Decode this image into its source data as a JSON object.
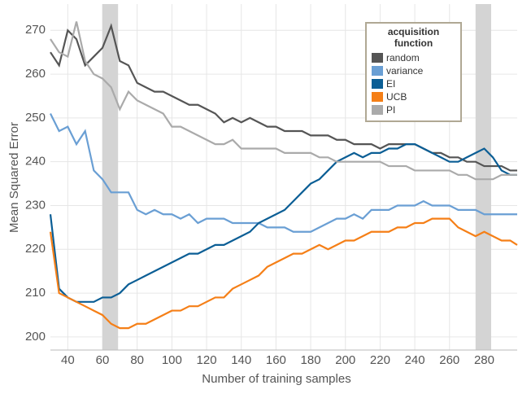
{
  "chart_data": {
    "type": "line",
    "x_label": "Number of training samples",
    "y_label": "Mean Squared Error",
    "legend_title": "acquisition function",
    "legend_position": "top-right",
    "grid": true,
    "xlim": [
      30,
      299
    ],
    "ylim": [
      197,
      276
    ],
    "xticks": [
      40,
      60,
      80,
      100,
      120,
      140,
      160,
      180,
      200,
      220,
      240,
      260,
      280
    ],
    "yticks": [
      200,
      210,
      220,
      230,
      240,
      250,
      260,
      270
    ],
    "highlight_ranges": [
      [
        60,
        69
      ],
      [
        275,
        284
      ]
    ],
    "x": [
      30,
      35,
      40,
      45,
      50,
      55,
      60,
      65,
      70,
      75,
      80,
      85,
      90,
      95,
      100,
      105,
      110,
      115,
      120,
      125,
      130,
      135,
      140,
      145,
      150,
      155,
      160,
      165,
      170,
      175,
      180,
      185,
      190,
      195,
      200,
      205,
      210,
      215,
      220,
      225,
      230,
      235,
      240,
      245,
      250,
      255,
      260,
      265,
      270,
      275,
      280,
      285,
      290,
      295,
      299
    ],
    "series": [
      {
        "name": "random",
        "color": "#555555",
        "values": [
          265,
          262,
          270,
          268,
          262,
          264,
          266,
          271,
          263,
          262,
          258,
          257,
          256,
          256,
          255,
          254,
          253,
          253,
          252,
          251,
          249,
          250,
          249,
          250,
          249,
          248,
          248,
          247,
          247,
          247,
          246,
          246,
          246,
          245,
          245,
          244,
          244,
          244,
          243,
          244,
          244,
          244,
          244,
          243,
          242,
          242,
          241,
          241,
          240,
          240,
          239,
          239,
          239,
          238,
          238
        ]
      },
      {
        "name": "variance",
        "color": "#6a9fd4",
        "values": [
          251,
          247,
          248,
          244,
          247,
          238,
          236,
          233,
          233,
          233,
          229,
          228,
          229,
          228,
          228,
          227,
          228,
          226,
          227,
          227,
          227,
          226,
          226,
          226,
          226,
          225,
          225,
          225,
          224,
          224,
          224,
          225,
          226,
          227,
          227,
          228,
          227,
          229,
          229,
          229,
          230,
          230,
          230,
          231,
          230,
          230,
          230,
          229,
          229,
          229,
          228,
          228,
          228,
          228,
          228
        ]
      },
      {
        "name": "EI",
        "color": "#0b5e95",
        "values": [
          228,
          211,
          209,
          208,
          208,
          208,
          209,
          209,
          210,
          212,
          213,
          214,
          215,
          216,
          217,
          218,
          219,
          219,
          220,
          221,
          221,
          222,
          223,
          224,
          226,
          227,
          228,
          229,
          231,
          233,
          235,
          236,
          238,
          240,
          241,
          242,
          241,
          242,
          242,
          243,
          243,
          244,
          244,
          243,
          242,
          241,
          240,
          240,
          241,
          242,
          243,
          241,
          238,
          237,
          237
        ]
      },
      {
        "name": "UCB",
        "color": "#f57f17",
        "values": [
          224,
          210,
          209,
          208,
          207,
          206,
          205,
          203,
          202,
          202,
          203,
          203,
          204,
          205,
          206,
          206,
          207,
          207,
          208,
          209,
          209,
          211,
          212,
          213,
          214,
          216,
          217,
          218,
          219,
          219,
          220,
          221,
          220,
          221,
          222,
          222,
          223,
          224,
          224,
          224,
          225,
          225,
          226,
          226,
          227,
          227,
          227,
          225,
          224,
          223,
          224,
          223,
          222,
          222,
          221
        ]
      },
      {
        "name": "PI",
        "color": "#aaaaaa",
        "values": [
          268,
          265,
          264,
          272,
          263,
          260,
          259,
          257,
          252,
          256,
          254,
          253,
          252,
          251,
          248,
          248,
          247,
          246,
          245,
          244,
          244,
          245,
          243,
          243,
          243,
          243,
          243,
          242,
          242,
          242,
          242,
          241,
          241,
          240,
          240,
          240,
          240,
          240,
          240,
          239,
          239,
          239,
          238,
          238,
          238,
          238,
          238,
          237,
          237,
          236,
          236,
          236,
          237,
          237,
          237
        ]
      }
    ]
  }
}
